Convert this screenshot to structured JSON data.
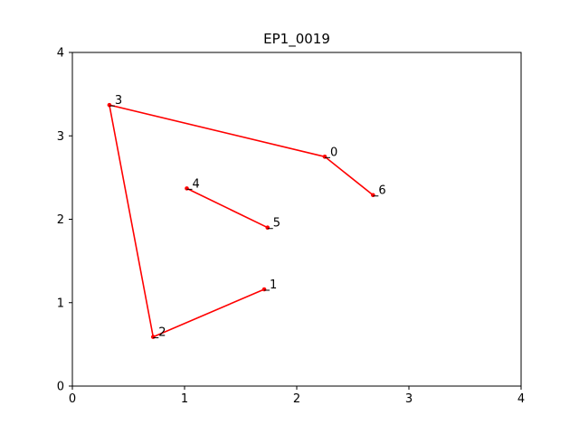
{
  "chart_data": {
    "type": "line",
    "title": "EP1_0019",
    "xlabel": "",
    "ylabel": "",
    "xlim": [
      0,
      4
    ],
    "ylim": [
      0,
      4
    ],
    "xticks": [
      0,
      1,
      2,
      3,
      4
    ],
    "yticks": [
      0,
      1,
      2,
      3,
      4
    ],
    "grid": false,
    "line_color": "#ff0000",
    "segments": [
      [
        {
          "label": "6",
          "x": 2.68,
          "y": 2.29
        },
        {
          "label": "0",
          "x": 2.25,
          "y": 2.75
        },
        {
          "label": "3",
          "x": 0.33,
          "y": 3.37
        },
        {
          "label": "2",
          "x": 0.72,
          "y": 0.59
        },
        {
          "label": "1",
          "x": 1.71,
          "y": 1.16
        }
      ],
      [
        {
          "label": "4",
          "x": 1.02,
          "y": 2.37
        },
        {
          "label": "5",
          "x": 1.74,
          "y": 1.9
        }
      ]
    ]
  }
}
